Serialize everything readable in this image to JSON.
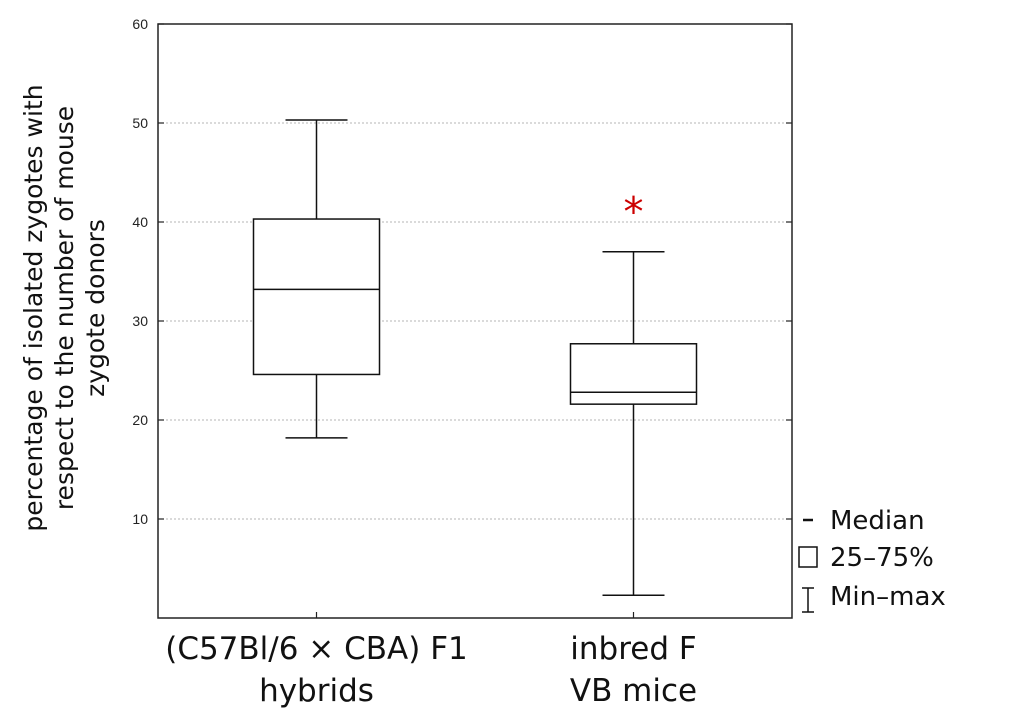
{
  "chart_data": {
    "type": "boxplot",
    "title": "",
    "ylabel_lines": [
      "percentage of isolated zygotes with",
      "respect to the number of mouse",
      "zygote donors"
    ],
    "ylim": [
      0,
      60
    ],
    "yticks": [
      10,
      20,
      30,
      40,
      50,
      60
    ],
    "grid": true,
    "categories": [
      {
        "label_lines": [
          "(C57Bl/6 × CBA) F1",
          "hybrids"
        ],
        "min": 18.2,
        "q1": 24.6,
        "median": 33.2,
        "q3": 40.3,
        "max": 50.3,
        "annotation": ""
      },
      {
        "label_lines": [
          "inbred F",
          "VB mice"
        ],
        "min": 2.3,
        "q1": 21.6,
        "median": 22.8,
        "q3": 27.7,
        "max": 37.0,
        "annotation": "*"
      }
    ],
    "legend": {
      "placement": "right",
      "items": [
        {
          "symbol": "median-dash",
          "label": "Median"
        },
        {
          "symbol": "box",
          "label": "25–75%"
        },
        {
          "symbol": "whisker",
          "label": "Min–max"
        }
      ]
    },
    "annotation_color": "#cc0000"
  }
}
